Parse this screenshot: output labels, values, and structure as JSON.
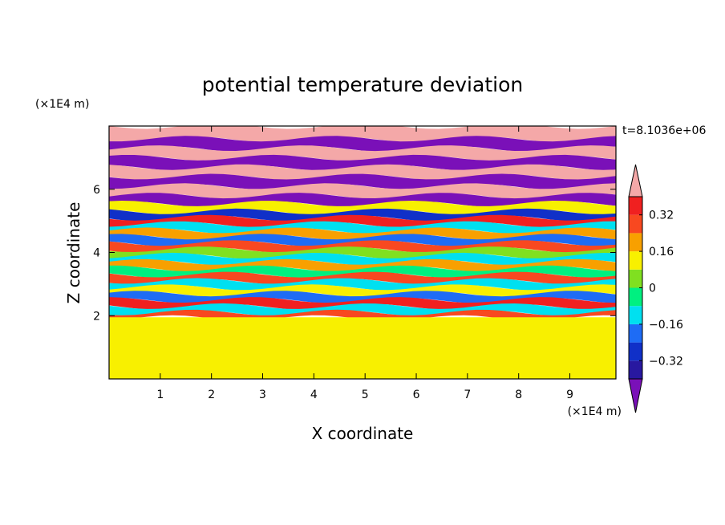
{
  "chart_data": {
    "type": "heatmap",
    "title": "potential temperature deviation",
    "xlabel": "X coordinate",
    "ylabel": "Z coordinate",
    "x_unit": "(×1E4 m)",
    "y_unit": "(×1E4 m)",
    "time_label": "t=8.1036e+06",
    "xlim": [
      0,
      9.9
    ],
    "ylim": [
      0,
      8
    ],
    "x_ticks": [
      1,
      2,
      3,
      4,
      5,
      6,
      7,
      8,
      9
    ],
    "y_ticks": [
      2,
      4,
      6
    ],
    "colorbar": {
      "levels": [
        -0.4,
        -0.32,
        -0.24,
        -0.16,
        -0.08,
        0,
        0.08,
        0.16,
        0.24,
        0.32,
        0.4
      ],
      "tick_labels": [
        "0.32",
        "0.16",
        "0",
        "−0.16",
        "−0.32"
      ],
      "tick_values": [
        0.32,
        0.16,
        0,
        -0.16,
        -0.32
      ],
      "over_color": "#f4a8a8",
      "under_color": "#7a10b8",
      "colors": [
        "#2818a0",
        "#1030c8",
        "#1e6cf5",
        "#00e0f0",
        "#00f080",
        "#80e020",
        "#f8f000",
        "#f8a000",
        "#f84820",
        "#f02020"
      ]
    },
    "field_bands": [
      {
        "z": [
          7.6,
          8.0
        ],
        "value": 0.5
      },
      {
        "z": [
          7.3,
          7.6
        ],
        "value": -0.5
      },
      {
        "z": [
          7.0,
          7.3
        ],
        "value": 0.5
      },
      {
        "z": [
          6.7,
          7.0
        ],
        "value": -0.5
      },
      {
        "z": [
          6.4,
          6.7
        ],
        "value": 0.5
      },
      {
        "z": [
          6.1,
          6.4
        ],
        "value": -0.5
      },
      {
        "z": [
          5.8,
          6.1
        ],
        "value": 0.5
      },
      {
        "z": [
          5.55,
          5.8
        ],
        "value": -0.5
      },
      {
        "z": [
          5.3,
          5.55
        ],
        "value": 0.1
      },
      {
        "z": [
          5.1,
          5.3
        ],
        "value": -0.3
      },
      {
        "z": [
          4.9,
          5.1
        ],
        "value": 0.36
      },
      {
        "z": [
          4.7,
          4.9
        ],
        "value": -0.12
      },
      {
        "z": [
          4.5,
          4.7
        ],
        "value": 0.2
      },
      {
        "z": [
          4.3,
          4.5
        ],
        "value": -0.2
      },
      {
        "z": [
          4.1,
          4.3
        ],
        "value": 0.28
      },
      {
        "z": [
          3.9,
          4.1
        ],
        "value": 0.04
      },
      {
        "z": [
          3.7,
          3.9
        ],
        "value": -0.1
      },
      {
        "z": [
          3.5,
          3.7
        ],
        "value": 0.17
      },
      {
        "z": [
          3.3,
          3.5
        ],
        "value": -0.05
      },
      {
        "z": [
          3.1,
          3.3
        ],
        "value": 0.3
      },
      {
        "z": [
          2.9,
          3.1
        ],
        "value": -0.1
      },
      {
        "z": [
          2.7,
          2.9
        ],
        "value": 0.12
      },
      {
        "z": [
          2.5,
          2.7
        ],
        "value": -0.22
      },
      {
        "z": [
          2.3,
          2.5
        ],
        "value": 0.34
      },
      {
        "z": [
          2.1,
          2.3
        ],
        "value": -0.15
      },
      {
        "z": [
          1.95,
          2.1
        ],
        "value": 0.25
      },
      {
        "z": [
          0,
          1.95
        ],
        "value": 0.08
      }
    ]
  }
}
